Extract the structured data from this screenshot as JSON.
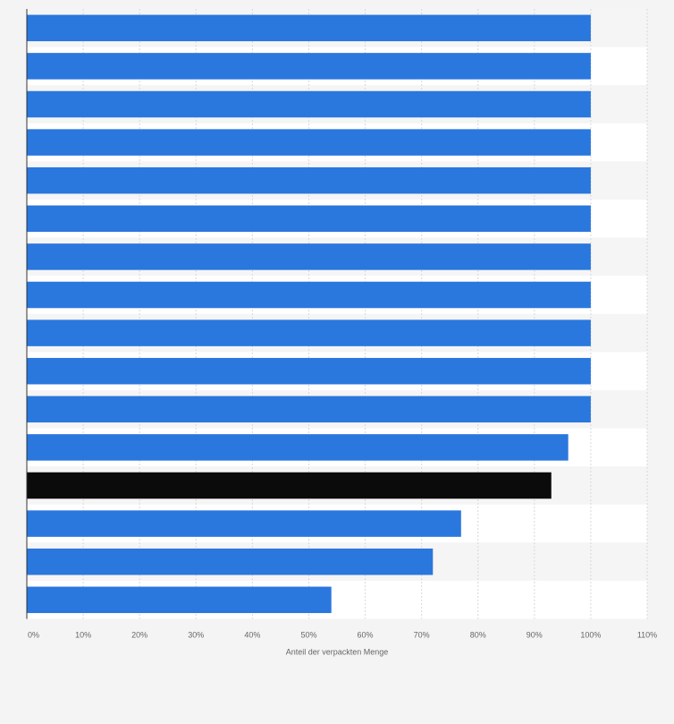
{
  "chart_data": {
    "type": "bar",
    "orientation": "horizontal",
    "title": "",
    "xlabel": "Anteil der verpackten Menge",
    "ylabel": "",
    "xlim": [
      0,
      110
    ],
    "x_ticks": [
      0,
      10,
      20,
      30,
      40,
      50,
      60,
      70,
      80,
      90,
      100,
      110
    ],
    "x_tick_labels": [
      "0%",
      "10%",
      "20%",
      "30%",
      "40%",
      "50%",
      "60%",
      "70%",
      "80%",
      "90%",
      "100%",
      "110%"
    ],
    "grid": "vertical dashed",
    "categories": [
      "",
      "",
      "",
      "",
      "",
      "",
      "",
      "",
      "",
      "",
      "",
      "",
      "",
      "",
      "",
      ""
    ],
    "values": [
      100,
      100,
      100,
      100,
      100,
      100,
      100,
      100,
      100,
      100,
      100,
      96,
      93,
      77,
      72,
      54
    ],
    "bar_colors": [
      "#2a77de",
      "#2a77de",
      "#2a77de",
      "#2a77de",
      "#2a77de",
      "#2a77de",
      "#2a77de",
      "#2a77de",
      "#2a77de",
      "#2a77de",
      "#2a77de",
      "#2a77de",
      "#0b0b0b",
      "#2a77de",
      "#2a77de",
      "#2a77de"
    ],
    "colors": {
      "bar": "#2a77de",
      "highlight": "#0b0b0b",
      "band_a": "#ffffff",
      "band_b": "#f5f5f5",
      "axis": "#333333",
      "grid": "#d8d8d8"
    }
  }
}
